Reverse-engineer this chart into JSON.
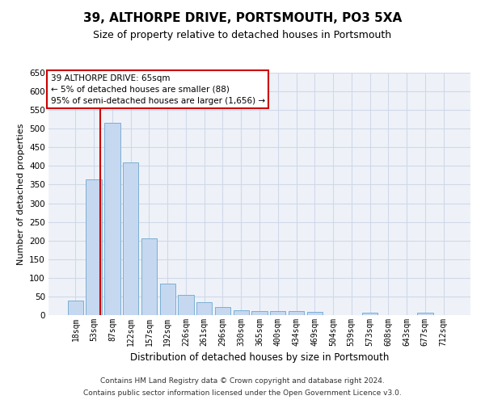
{
  "title": "39, ALTHORPE DRIVE, PORTSMOUTH, PO3 5XA",
  "subtitle": "Size of property relative to detached houses in Portsmouth",
  "xlabel": "Distribution of detached houses by size in Portsmouth",
  "ylabel": "Number of detached properties",
  "bar_labels": [
    "18sqm",
    "53sqm",
    "87sqm",
    "122sqm",
    "157sqm",
    "192sqm",
    "226sqm",
    "261sqm",
    "296sqm",
    "330sqm",
    "365sqm",
    "400sqm",
    "434sqm",
    "469sqm",
    "504sqm",
    "539sqm",
    "573sqm",
    "608sqm",
    "643sqm",
    "677sqm",
    "712sqm"
  ],
  "bar_values": [
    38,
    365,
    515,
    410,
    205,
    85,
    55,
    35,
    22,
    12,
    10,
    10,
    10,
    8,
    0,
    0,
    6,
    0,
    0,
    6,
    0
  ],
  "bar_color": "#c5d8f0",
  "bar_edge_color": "#7bafd4",
  "grid_color": "#d0d8e8",
  "background_color": "#eef2f8",
  "annotation_text": "39 ALTHORPE DRIVE: 65sqm\n← 5% of detached houses are smaller (88)\n95% of semi-detached houses are larger (1,656) →",
  "annotation_box_color": "#ffffff",
  "annotation_border_color": "#cc0000",
  "footer_line1": "Contains HM Land Registry data © Crown copyright and database right 2024.",
  "footer_line2": "Contains public sector information licensed under the Open Government Licence v3.0.",
  "ylim": [
    0,
    650
  ],
  "yticks": [
    0,
    50,
    100,
    150,
    200,
    250,
    300,
    350,
    400,
    450,
    500,
    550,
    600,
    650
  ]
}
